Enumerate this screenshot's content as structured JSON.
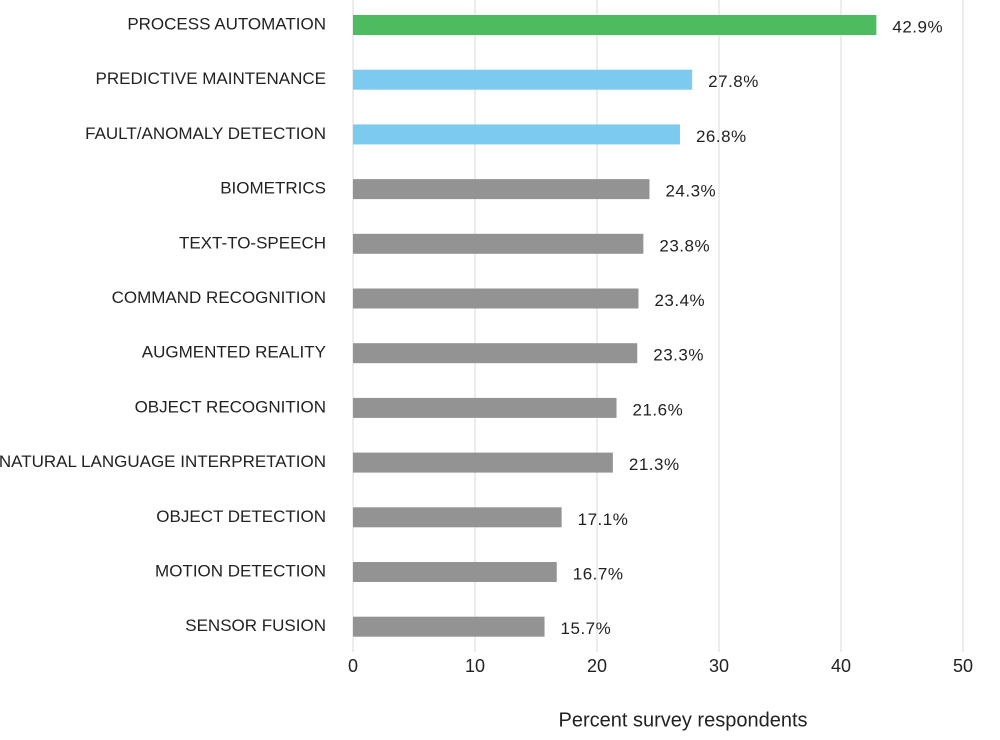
{
  "chart_data": {
    "type": "barh",
    "categories": [
      "PROCESS AUTOMATION",
      "PREDICTIVE MAINTENANCE",
      "FAULT/ANOMALY DETECTION",
      "BIOMETRICS",
      "TEXT-TO-SPEECH",
      "COMMAND RECOGNITION",
      "AUGMENTED REALITY",
      "OBJECT RECOGNITION",
      "NATURAL LANGUAGE INTERPRETATION",
      "OBJECT DETECTION",
      "MOTION DETECTION",
      "SENSOR FUSION"
    ],
    "values": [
      42.9,
      27.8,
      26.8,
      24.3,
      23.8,
      23.4,
      23.3,
      21.6,
      21.3,
      17.1,
      16.7,
      15.7
    ],
    "value_labels": [
      "42.9%",
      "27.8%",
      "26.8%",
      "24.3%",
      "23.8%",
      "23.4%",
      "23.3%",
      "21.6%",
      "21.3%",
      "17.1%",
      "16.7%",
      "15.7%"
    ],
    "colors": [
      "#4dbb5f",
      "#7ccbef",
      "#7ccbef",
      "#939393",
      "#939393",
      "#939393",
      "#939393",
      "#939393",
      "#939393",
      "#939393",
      "#939393",
      "#939393"
    ],
    "xlim": [
      0,
      50
    ],
    "xticks": [
      0,
      10,
      20,
      30,
      40,
      50
    ],
    "grid": true,
    "xlabel": "Percent survey respondents"
  }
}
